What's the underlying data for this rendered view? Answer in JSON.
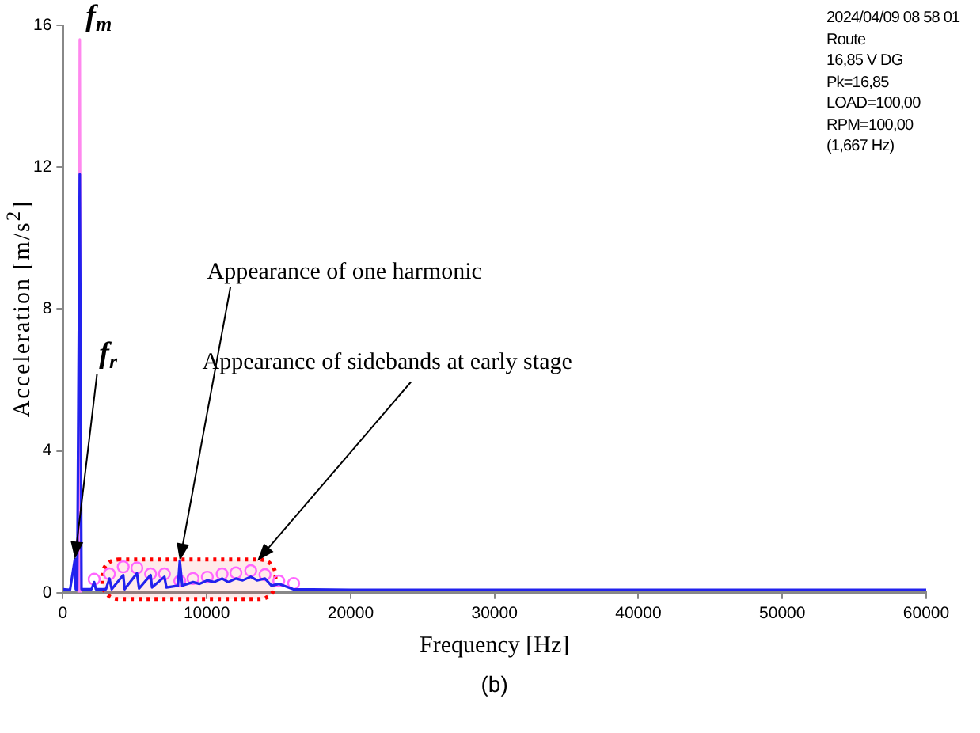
{
  "chart_data": {
    "type": "line",
    "xlabel": "Frequency [Hz]",
    "ylabel": "Acceleration  [m/s$^{2}$]",
    "xlim": [
      0,
      60000
    ],
    "xticks": [
      0,
      10000,
      20000,
      30000,
      40000,
      50000,
      60000
    ],
    "ylim": [
      0,
      16
    ],
    "yticks": [
      0,
      4,
      8,
      12,
      16
    ],
    "grid": false,
    "legend": false,
    "series": [
      {
        "color": "#2222ee",
        "marker": "none",
        "x": [
          0,
          500,
          840,
          900,
          1000,
          1180,
          1300,
          2000,
          2180,
          2300,
          3000,
          3240,
          3400,
          4200,
          4300,
          5150,
          5300,
          6100,
          6200,
          7060,
          7200,
          8000,
          8130,
          8300,
          9050,
          9500,
          10040,
          10500,
          11070,
          11500,
          12030,
          12500,
          13060,
          13500,
          14050,
          14500,
          15010,
          16000,
          20000,
          30000,
          40000,
          50000,
          60000
        ],
        "values": [
          0.1,
          0.08,
          0.95,
          0.1,
          0.08,
          11.8,
          0.1,
          0.1,
          0.3,
          0.1,
          0.1,
          0.4,
          0.1,
          0.5,
          0.1,
          0.55,
          0.12,
          0.5,
          0.15,
          0.45,
          0.15,
          0.2,
          0.9,
          0.2,
          0.3,
          0.25,
          0.35,
          0.3,
          0.4,
          0.3,
          0.4,
          0.35,
          0.45,
          0.35,
          0.4,
          0.2,
          0.25,
          0.1,
          0.08,
          0.08,
          0.08,
          0.08,
          0.08
        ]
      },
      {
        "color": "#ff88ee",
        "marker": "none",
        "x": [
          1100,
          1180,
          1260
        ],
        "values": [
          0,
          15.6,
          0
        ]
      },
      {
        "type": "scatter",
        "color": "#ff66ff",
        "marker": "circle",
        "x": [
          2180,
          3240,
          4200,
          5150,
          6100,
          7060,
          8130,
          9050,
          10040,
          11070,
          12030,
          13060,
          14050,
          15010,
          16040
        ],
        "values": [
          0.38,
          0.53,
          0.73,
          0.7,
          0.53,
          0.53,
          0.33,
          0.4,
          0.44,
          0.53,
          0.56,
          0.62,
          0.51,
          0.33,
          0.26
        ]
      }
    ],
    "bands": [
      {
        "axis": "x",
        "from": 2750,
        "to": 14780,
        "color": "#ff0000"
      }
    ],
    "annotations": [
      {
        "text": "f$_{m}$",
        "x": 1180,
        "y": 15.6
      },
      {
        "text": "f$_{r}$",
        "x": 840,
        "y": 0.95
      },
      {
        "text": "Appearance of one harmonic",
        "x": 8130,
        "y": 0.9
      },
      {
        "text": "Appearance of sidebands at early stage",
        "x": 13520,
        "y": 0.9
      },
      "2024/04/09 08 58 01",
      "Route",
      "16,85 V DG",
      "Pk=16,85",
      "LOAD=100,00",
      "RPM=100,00",
      "(1,667 Hz)",
      "(b)"
    ]
  }
}
